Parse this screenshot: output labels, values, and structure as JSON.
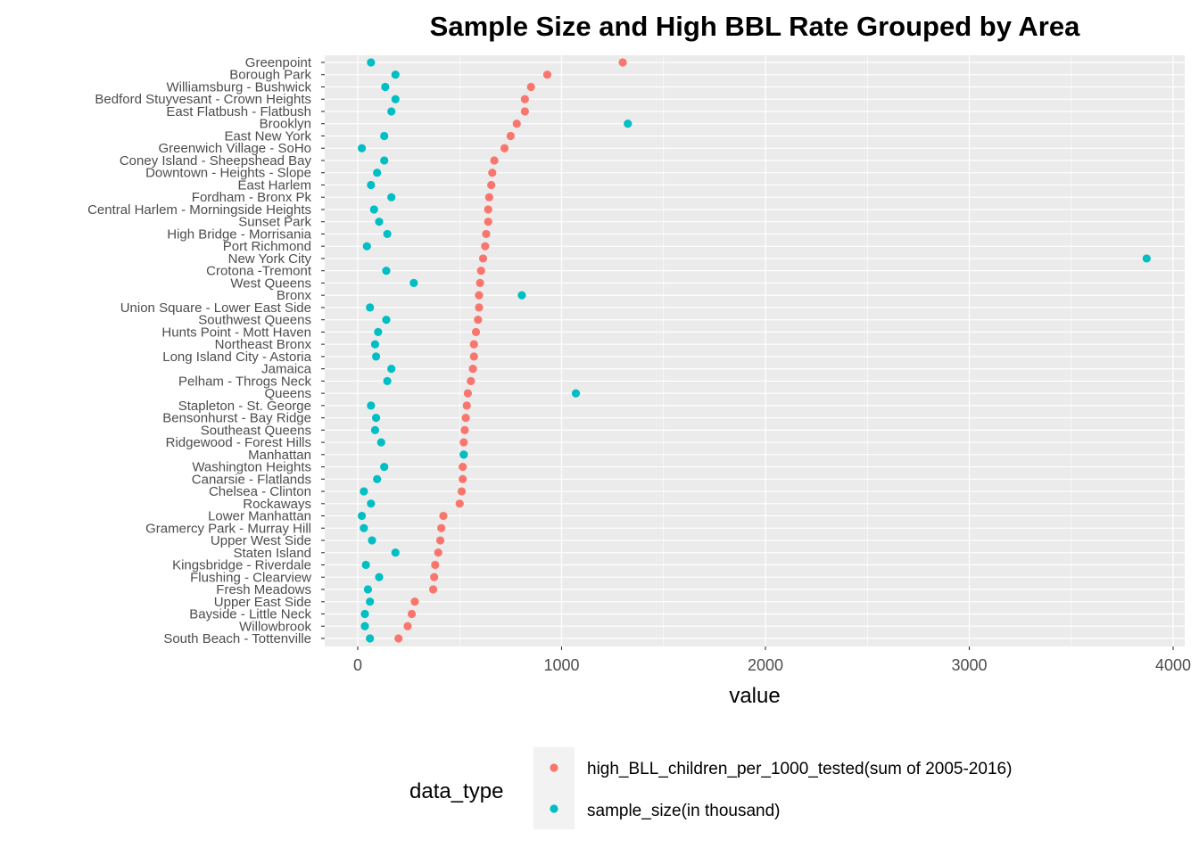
{
  "chart_data": {
    "type": "scatter",
    "title": "Sample Size and High BBL Rate Grouped by Area",
    "xlabel": "value",
    "ylabel": "",
    "xlim": [
      -160,
      4040
    ],
    "xticks": [
      0,
      1000,
      2000,
      3000,
      4000
    ],
    "xtick_labels": [
      "0",
      "1000",
      "2000",
      "3000",
      "4000"
    ],
    "grid": true,
    "legend_position": "bottom",
    "legend_title": "data_type",
    "categories": [
      "Greenpoint",
      "Borough Park",
      "Williamsburg - Bushwick",
      "Bedford Stuyvesant - Crown Heights",
      "East Flatbush - Flatbush",
      "Brooklyn",
      "East New York",
      "Greenwich Village - SoHo",
      "Coney Island - Sheepshead Bay",
      "Downtown - Heights - Slope",
      "East Harlem",
      "Fordham - Bronx Pk",
      "Central Harlem - Morningside Heights",
      "Sunset Park",
      "High Bridge - Morrisania",
      "Port Richmond",
      "New York City",
      "Crotona -Tremont",
      "West Queens",
      "Bronx",
      "Union Square - Lower East Side",
      "Southwest Queens",
      "Hunts Point - Mott Haven",
      "Northeast Bronx",
      "Long Island City - Astoria",
      "Jamaica",
      "Pelham - Throgs Neck",
      "Queens",
      "Stapleton - St. George",
      "Bensonhurst - Bay Ridge",
      "Southeast Queens",
      "Ridgewood - Forest Hills",
      "Manhattan",
      "Washington Heights",
      "Canarsie - Flatlands",
      "Chelsea - Clinton",
      "Rockaways",
      "Lower Manhattan",
      "Gramercy Park - Murray Hill",
      "Upper West Side",
      "Staten Island",
      "Kingsbridge - Riverdale",
      "Flushing - Clearview",
      "Fresh Meadows",
      "Upper East Side",
      "Bayside - Little Neck",
      "Willowbrook",
      "South Beach - Tottenville"
    ],
    "series": [
      {
        "name": "high_BLL_children_per_1000_tested(sum of 2005-2016)",
        "color": "#F8766D",
        "values": [
          1300,
          930,
          850,
          820,
          820,
          780,
          750,
          720,
          670,
          660,
          655,
          645,
          640,
          640,
          630,
          625,
          615,
          605,
          600,
          595,
          595,
          590,
          580,
          570,
          570,
          565,
          555,
          540,
          535,
          530,
          525,
          520,
          520,
          515,
          515,
          510,
          500,
          420,
          410,
          405,
          395,
          380,
          375,
          370,
          280,
          265,
          245,
          200
        ]
      },
      {
        "name": "sample_size(in thousand)",
        "color": "#00BFC4",
        "values": [
          65,
          185,
          135,
          185,
          165,
          1325,
          130,
          20,
          130,
          95,
          65,
          165,
          80,
          105,
          145,
          45,
          3870,
          140,
          275,
          805,
          60,
          140,
          100,
          85,
          90,
          165,
          145,
          1070,
          65,
          90,
          85,
          115,
          520,
          130,
          95,
          30,
          65,
          20,
          30,
          70,
          185,
          40,
          105,
          50,
          60,
          35,
          35,
          60
        ]
      }
    ]
  }
}
